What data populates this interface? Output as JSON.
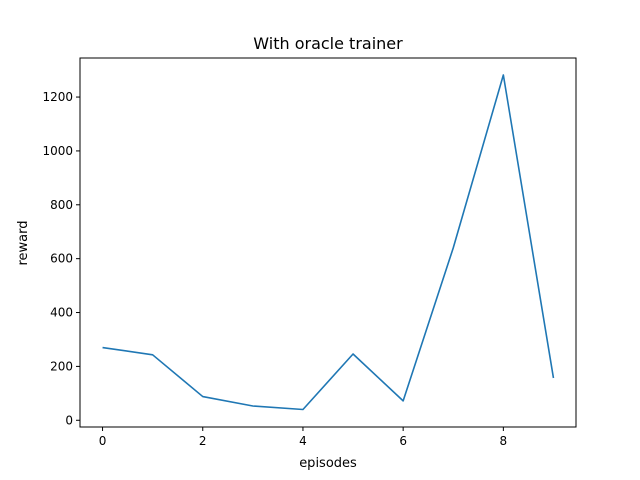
{
  "chart_data": {
    "type": "line",
    "title": "With oracle trainer",
    "xlabel": "episodes",
    "ylabel": "reward",
    "xlim": [
      -0.45,
      9.45
    ],
    "ylim": [
      -25,
      1345
    ],
    "xticks": [
      0,
      2,
      4,
      6,
      8
    ],
    "yticks": [
      0,
      200,
      400,
      600,
      800,
      1000,
      1200
    ],
    "grid": false,
    "series": [
      {
        "color": "#1f77b4",
        "x": [
          0,
          1,
          2,
          3,
          4,
          5,
          6,
          7,
          8,
          9
        ],
        "y": [
          270,
          243,
          88,
          53,
          40,
          246,
          72,
          640,
          1282,
          157
        ]
      }
    ]
  }
}
